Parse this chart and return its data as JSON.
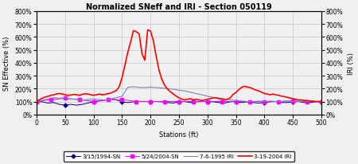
{
  "title": "Normalized SNeff and IRI - Section 050119",
  "xlabel": "Stations (ft)",
  "ylabel_left": "SN Effective (%)",
  "ylabel_right": "IRI (%)",
  "xlim": [
    0,
    500
  ],
  "ylim": [
    0,
    800
  ],
  "xticks": [
    0,
    50,
    100,
    150,
    200,
    250,
    300,
    350,
    400,
    450,
    500
  ],
  "yticks": [
    0,
    100,
    200,
    300,
    400,
    500,
    600,
    700,
    800
  ],
  "legend_labels": [
    "3/15/1994-SN",
    "5/24/2004-SN",
    "7-6-1995 IRI",
    "3-19-2004 IRI"
  ],
  "sn1994_x": [
    0,
    10,
    20,
    30,
    40,
    50,
    60,
    70,
    80,
    90,
    100,
    110,
    120,
    130,
    140,
    150,
    160,
    170,
    180,
    190,
    200,
    210,
    220,
    230,
    240,
    250,
    260,
    270,
    280,
    290,
    300,
    310,
    320,
    330,
    340,
    350,
    360,
    370,
    380,
    390,
    400,
    410,
    420,
    430,
    440,
    450,
    460,
    470,
    480,
    490,
    500
  ],
  "sn1994_y": [
    100,
    98,
    88,
    92,
    78,
    72,
    78,
    72,
    78,
    88,
    98,
    104,
    110,
    118,
    112,
    98,
    92,
    98,
    100,
    100,
    100,
    100,
    98,
    92,
    88,
    98,
    100,
    92,
    98,
    100,
    100,
    98,
    92,
    88,
    98,
    100,
    92,
    98,
    92,
    88,
    92,
    98,
    100,
    92,
    92,
    98,
    100,
    92,
    92,
    98,
    98
  ],
  "sn2004_x": [
    0,
    25,
    50,
    75,
    100,
    125,
    150,
    175,
    200,
    225,
    250,
    275,
    300,
    325,
    350,
    375,
    400,
    425,
    450,
    475,
    500
  ],
  "sn2004_y": [
    100,
    115,
    125,
    115,
    100,
    115,
    115,
    100,
    100,
    100,
    100,
    100,
    100,
    100,
    100,
    100,
    100,
    100,
    105,
    100,
    100
  ],
  "iri1995_x": [
    0,
    10,
    20,
    30,
    40,
    50,
    60,
    70,
    80,
    90,
    100,
    110,
    120,
    130,
    140,
    150,
    160,
    170,
    180,
    190,
    200,
    210,
    220,
    230,
    240,
    250,
    260,
    270,
    280,
    290,
    300,
    310,
    320,
    330,
    340,
    350,
    360,
    370,
    380,
    390,
    400,
    410,
    420,
    430,
    440,
    450,
    460,
    470,
    480,
    490,
    500
  ],
  "iri1995_y": [
    100,
    110,
    120,
    130,
    125,
    130,
    120,
    115,
    110,
    115,
    120,
    115,
    110,
    120,
    130,
    140,
    210,
    215,
    210,
    208,
    212,
    208,
    205,
    200,
    195,
    188,
    182,
    172,
    162,
    152,
    142,
    132,
    128,
    122,
    112,
    108,
    104,
    100,
    100,
    104,
    100,
    104,
    100,
    100,
    104,
    100,
    100,
    100,
    100,
    100,
    100
  ],
  "iri2004_x": [
    0,
    5,
    10,
    15,
    20,
    25,
    30,
    35,
    40,
    45,
    50,
    55,
    60,
    65,
    70,
    75,
    80,
    85,
    90,
    95,
    100,
    105,
    110,
    115,
    120,
    125,
    130,
    135,
    140,
    145,
    150,
    155,
    160,
    165,
    170,
    175,
    180,
    185,
    190,
    195,
    200,
    205,
    210,
    215,
    220,
    225,
    230,
    235,
    240,
    245,
    250,
    255,
    260,
    265,
    270,
    275,
    280,
    285,
    290,
    295,
    300,
    305,
    310,
    315,
    320,
    325,
    330,
    335,
    340,
    345,
    350,
    355,
    360,
    365,
    370,
    375,
    380,
    385,
    390,
    395,
    400,
    405,
    410,
    415,
    420,
    425,
    430,
    435,
    440,
    445,
    450,
    455,
    460,
    465,
    470,
    475,
    480,
    485,
    490,
    495,
    500
  ],
  "iri2004_y": [
    100,
    115,
    125,
    135,
    140,
    148,
    152,
    158,
    162,
    158,
    152,
    148,
    150,
    155,
    152,
    148,
    155,
    160,
    158,
    152,
    148,
    152,
    158,
    152,
    155,
    160,
    165,
    175,
    185,
    215,
    285,
    380,
    480,
    560,
    650,
    640,
    625,
    470,
    420,
    655,
    645,
    570,
    450,
    340,
    270,
    225,
    195,
    175,
    158,
    142,
    128,
    118,
    112,
    118,
    122,
    112,
    118,
    112,
    108,
    112,
    118,
    122,
    128,
    128,
    122,
    118,
    112,
    118,
    128,
    155,
    170,
    192,
    210,
    218,
    212,
    208,
    198,
    188,
    182,
    172,
    162,
    158,
    152,
    158,
    152,
    148,
    142,
    138,
    132,
    128,
    122,
    118,
    112,
    112,
    108,
    108,
    104,
    104,
    100,
    100,
    100
  ],
  "color_sn1994": "#00008B",
  "color_sn2004": "#FF00FF",
  "color_iri1995": "#8080C0",
  "color_iri2004": "#FF0000",
  "bg_color": "#F0F0F0"
}
